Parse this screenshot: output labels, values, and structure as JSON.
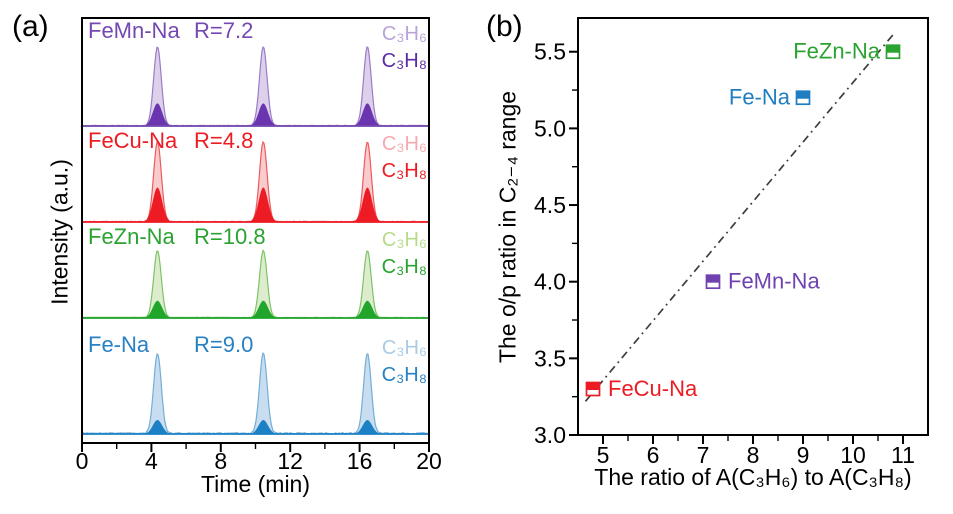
{
  "panel_a": {
    "label": "(a)",
    "x_title": "Time (min)",
    "y_title": "Intensity (a.u.)"
  },
  "panel_b": {
    "label": "(b)",
    "x_title": "The ratio of A(C₃H₆) to A(C₃H₈)",
    "y_title": "The o/p ratio in C₂₋₄ range"
  },
  "chart_data": [
    {
      "type": "line",
      "title": "Chromatograms of C3H6/C3H8 peaks for four catalysts",
      "xlabel": "Time (min)",
      "ylabel": "Intensity (a.u.)",
      "xlim": [
        0,
        20
      ],
      "x_major_ticks": [
        0,
        4,
        8,
        12,
        16,
        20
      ],
      "x_minor_step": 2,
      "grid": false,
      "peak_times_min": [
        4.35,
        10.45,
        16.45
      ],
      "species_light": "C₃H₆",
      "species_dark": "C₃H₈",
      "traces": [
        {
          "name": "FeMn-Na",
          "R_label": "R=7.2",
          "R": 7.2,
          "c3h6_rel_height": 0.73,
          "c3h8_rel_height": 0.21,
          "colors": {
            "line": "#7448b0",
            "fill_light": "#dcd0ea",
            "stroke_light": "#9a7cc8",
            "fill_dark": "#6a35ae",
            "label": "#7448b0",
            "label_c3h6": "#b9a4da",
            "label_c3h8": "#5c2ba6"
          }
        },
        {
          "name": "FeCu-Na",
          "R_label": "R=4.8",
          "R": 4.8,
          "c3h6_rel_height": 0.74,
          "c3h8_rel_height": 0.32,
          "colors": {
            "line": "#ed1c24",
            "fill_light": "#f8cbcd",
            "stroke_light": "#ee5a5e",
            "fill_dark": "#ed1c24",
            "label": "#ed1c24",
            "label_c3h6": "#f6aab0",
            "label_c3h8": "#ed1c24"
          }
        },
        {
          "name": "FeZn-Na",
          "R_label": "R=10.8",
          "R": 10.8,
          "c3h6_rel_height": 0.62,
          "c3h8_rel_height": 0.16,
          "colors": {
            "line": "#21a52b",
            "fill_light": "#ddeccd",
            "stroke_light": "#7cc465",
            "fill_dark": "#21a52b",
            "label": "#2ba330",
            "label_c3h6": "#b5dc8a",
            "label_c3h8": "#2ba330"
          }
        },
        {
          "name": "Fe-Na",
          "R_label": "R=9.0",
          "R": 9.0,
          "c3h6_rel_height": 0.74,
          "c3h8_rel_height": 0.13,
          "colors": {
            "line": "#1b80c4",
            "fill_light": "#c8def0",
            "stroke_light": "#74aed6",
            "fill_dark": "#1b80c4",
            "label": "#2781c4",
            "label_c3h6": "#a9cce6",
            "label_c3h8": "#2781c4"
          }
        }
      ]
    },
    {
      "type": "scatter",
      "title": "o/p ratio vs propene/propane area ratio",
      "xlabel": "The ratio of A(C₃H₆) to A(C₃H₈)",
      "ylabel": "The o/p ratio in C₂₋₄ range",
      "xlim": [
        4.5,
        11.5
      ],
      "ylim": [
        3.0,
        5.72
      ],
      "x_major_ticks": [
        5,
        6,
        7,
        8,
        9,
        10,
        11
      ],
      "x_minor_step": 0.5,
      "y_major_ticks": [
        3.0,
        3.5,
        4.0,
        4.5,
        5.0,
        5.5
      ],
      "y_minor_step": 0.25,
      "grid": false,
      "legend": "none (labels beside points)",
      "marker": "half-filled-square",
      "points": [
        {
          "label": "FeCu-Na",
          "x": 4.8,
          "y": 3.3,
          "color": "#ed1c24",
          "label_side": "right"
        },
        {
          "label": "FeMn-Na",
          "x": 7.2,
          "y": 4.0,
          "color": "#6f42b0",
          "label_side": "right"
        },
        {
          "label": "Fe-Na",
          "x": 9.0,
          "y": 5.2,
          "color": "#1f7ec2",
          "label_side": "left"
        },
        {
          "label": "FeZn-Na",
          "x": 10.8,
          "y": 5.5,
          "color": "#2ba330",
          "label_side": "left"
        }
      ],
      "trendline": {
        "x1": 4.65,
        "y1": 3.22,
        "x2": 10.85,
        "y2": 5.63,
        "style": "dash-dot",
        "color": "#3e3e3e"
      }
    }
  ]
}
